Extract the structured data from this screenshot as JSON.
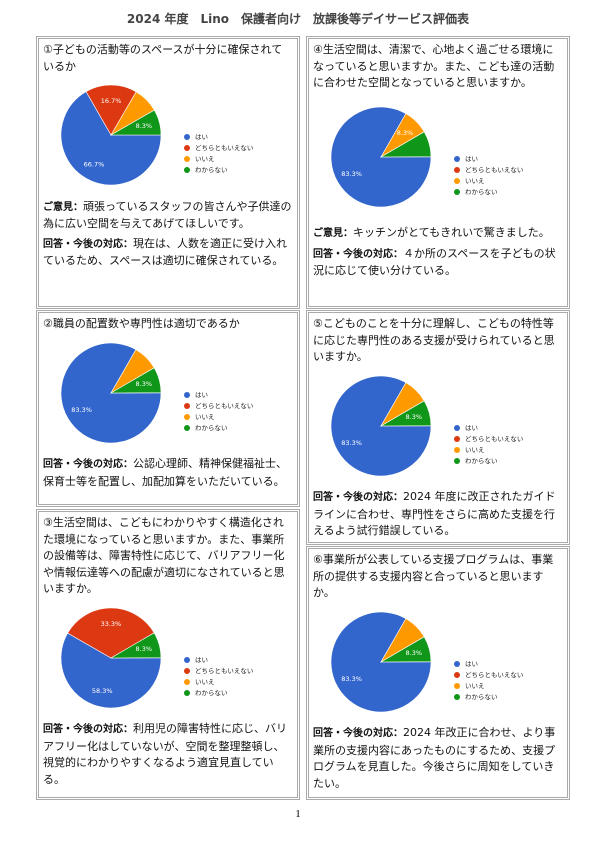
{
  "title": "2024 年度　Lino　保護者向け　放課後等デイサービス評価表",
  "chart_data": [
    {
      "type": "pie",
      "categories": [
        "はい",
        "どちらともいえない",
        "いいえ",
        "わからない"
      ],
      "colors": [
        "#3366cc",
        "#dc3912",
        "#ff9900",
        "#109618"
      ],
      "values": [
        66.7,
        16.7,
        8.3,
        8.3
      ],
      "value_labels": [
        "66.7%",
        "16.7%",
        null,
        "8.3%"
      ]
    },
    {
      "type": "pie",
      "categories": [
        "はい",
        "どちらともいえない",
        "いいえ",
        "わからない"
      ],
      "colors": [
        "#3366cc",
        "#dc3912",
        "#ff9900",
        "#109618"
      ],
      "values": [
        83.3,
        0,
        8.3,
        8.3
      ],
      "value_labels": [
        "83.3%",
        null,
        null,
        "8.3%"
      ]
    },
    {
      "type": "pie",
      "categories": [
        "はい",
        "どちらともいえない",
        "いいえ",
        "わからない"
      ],
      "colors": [
        "#3366cc",
        "#dc3912",
        "#ff9900",
        "#109618"
      ],
      "values": [
        58.3,
        33.3,
        0,
        8.3
      ],
      "value_labels": [
        "58.3%",
        "33.3%",
        null,
        "8.3%"
      ]
    },
    {
      "type": "pie",
      "categories": [
        "はい",
        "どちらともいえない",
        "いいえ",
        "わからない"
      ],
      "colors": [
        "#3366cc",
        "#dc3912",
        "#ff9900",
        "#109618"
      ],
      "values": [
        83.3,
        0,
        8.3,
        8.3
      ],
      "value_labels": [
        "83.3%",
        null,
        "8.3%",
        null
      ]
    },
    {
      "type": "pie",
      "categories": [
        "はい",
        "どちらともいえない",
        "いいえ",
        "わからない"
      ],
      "colors": [
        "#3366cc",
        "#dc3912",
        "#ff9900",
        "#109618"
      ],
      "values": [
        83.3,
        0,
        8.3,
        8.3
      ],
      "value_labels": [
        "83.3%",
        null,
        null,
        "8.3%"
      ]
    },
    {
      "type": "pie",
      "categories": [
        "はい",
        "どちらともいえない",
        "いいえ",
        "わからない"
      ],
      "colors": [
        "#3366cc",
        "#dc3912",
        "#ff9900",
        "#109618"
      ],
      "values": [
        83.3,
        0,
        8.3,
        8.3
      ],
      "value_labels": [
        "83.3%",
        null,
        null,
        "8.3%"
      ]
    }
  ],
  "panels": [
    {
      "question": "①子どもの活動等のスペースが十分に確保されているか",
      "comments": [
        {
          "label": "ご意見：",
          "text": "頑張っているスタッフの皆さんや子供達の為に広い空間を与えてあげてほしいです。"
        },
        {
          "label": "回答・今後の対応：",
          "text": "現在は、人数を適正に受け入れているため、スペースは適切に確保されている。"
        }
      ]
    },
    {
      "question": "②職員の配置数や専門性は適切であるか",
      "comments": [
        {
          "label": "回答・今後の対応：",
          "text": "公認心理師、精神保健福祉士、保育士等を配置し、加配加算をいただいている。"
        }
      ]
    },
    {
      "question": "③生活空間は、こどもにわかりやすく構造化された環境になっていると思いますか。また、事業所の設備等は、障害特性に応じて、バリアフリー化や情報伝達等への配慮が適切になされていると思いますか。",
      "comments": [
        {
          "label": "回答・今後の対応：",
          "text": "利用児の障害特性に応じ、バリアフリー化はしていないが、空間を整理整頓し、視覚的にわかりやすくなるよう適宜見直している。"
        }
      ]
    },
    {
      "question": "④生活空間は、清潔で、心地よく過ごせる環境になっていると思いますか。また、こども達の活動に合わせた空間となっていると思いますか。",
      "comments": [
        {
          "label": "ご意見：",
          "text": "キッチンがとてもきれいで驚きました。"
        },
        {
          "label": "回答・今後の対応：",
          "text": "４か所のスペースを子どもの状況に応じて使い分けている。"
        }
      ]
    },
    {
      "question": "⑤こどものことを十分に理解し、こどもの特性等に応じた専門性のある支援が受けられていると思いますか。",
      "comments": [
        {
          "label": "回答・今後の対応：",
          "text": "2024 年度に改正されたガイドラインに合わせ、専門性をさらに高めた支援を行えるよう試行錯誤している。"
        }
      ]
    },
    {
      "question": "⑥事業所が公表している支援プログラムは、事業所の提供する支援内容と合っていると思いますか。",
      "comments": [
        {
          "label": "回答・今後の対応：",
          "text": "2024 年改正に合わせ、より事業所の支援内容にあったものにするため、支援プログラムを見直した。今後さらに周知をしていきたい。"
        }
      ]
    }
  ],
  "page_number": "1"
}
